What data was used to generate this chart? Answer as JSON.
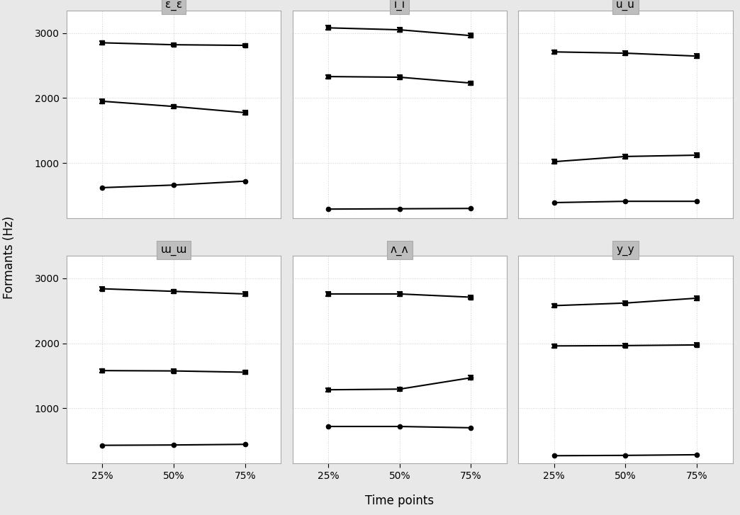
{
  "panels": [
    {
      "title": "ε_ε",
      "lines": [
        {
          "y": [
            2850,
            2820,
            2810
          ],
          "yerr": [
            28,
            22,
            22
          ],
          "marker": "s"
        },
        {
          "y": [
            1950,
            1870,
            1775
          ],
          "yerr": [
            28,
            28,
            28
          ],
          "marker": "s"
        },
        {
          "y": [
            620,
            660,
            720
          ],
          "yerr": [
            0,
            0,
            0
          ],
          "marker": "o"
        }
      ]
    },
    {
      "title": "i_i",
      "lines": [
        {
          "y": [
            3080,
            3050,
            2960
          ],
          "yerr": [
            32,
            28,
            32
          ],
          "marker": "s"
        },
        {
          "y": [
            2330,
            2320,
            2230
          ],
          "yerr": [
            28,
            28,
            28
          ],
          "marker": "s"
        },
        {
          "y": [
            290,
            295,
            300
          ],
          "yerr": [
            0,
            0,
            0
          ],
          "marker": "o"
        }
      ]
    },
    {
      "title": "u_u",
      "lines": [
        {
          "y": [
            2710,
            2690,
            2645
          ],
          "yerr": [
            28,
            28,
            32
          ],
          "marker": "s"
        },
        {
          "y": [
            1020,
            1100,
            1120
          ],
          "yerr": [
            32,
            32,
            32
          ],
          "marker": "s"
        },
        {
          "y": [
            390,
            410,
            410
          ],
          "yerr": [
            0,
            0,
            0
          ],
          "marker": "o"
        }
      ]
    },
    {
      "title": "ɯ_ɯ",
      "lines": [
        {
          "y": [
            2840,
            2800,
            2760
          ],
          "yerr": [
            28,
            28,
            32
          ],
          "marker": "s"
        },
        {
          "y": [
            1580,
            1575,
            1555
          ],
          "yerr": [
            28,
            28,
            28
          ],
          "marker": "s"
        },
        {
          "y": [
            430,
            435,
            445
          ],
          "yerr": [
            0,
            0,
            0
          ],
          "marker": "o"
        }
      ]
    },
    {
      "title": "ʌ_ʌ",
      "lines": [
        {
          "y": [
            2760,
            2760,
            2710
          ],
          "yerr": [
            28,
            28,
            28
          ],
          "marker": "s"
        },
        {
          "y": [
            1285,
            1295,
            1470
          ],
          "yerr": [
            28,
            28,
            32
          ],
          "marker": "o"
        },
        {
          "y": [
            720,
            720,
            700
          ],
          "yerr": [
            0,
            0,
            0
          ],
          "marker": "o"
        }
      ]
    },
    {
      "title": "y_y",
      "lines": [
        {
          "y": [
            2580,
            2620,
            2695
          ],
          "yerr": [
            28,
            28,
            32
          ],
          "marker": "s"
        },
        {
          "y": [
            1960,
            1965,
            1975
          ],
          "yerr": [
            28,
            28,
            28
          ],
          "marker": "s"
        },
        {
          "y": [
            270,
            275,
            285
          ],
          "yerr": [
            0,
            0,
            0
          ],
          "marker": "o"
        }
      ]
    }
  ],
  "xticklabels": [
    "25%",
    "50%",
    "75%"
  ],
  "ylabel": "Formants (Hz)",
  "xlabel": "Time points",
  "ylim": [
    150,
    3350
  ],
  "yticks": [
    1000,
    2000,
    3000
  ],
  "fig_bg": "#e8e8e8",
  "panel_bg": "#ffffff",
  "strip_bg": "#bebebe",
  "line_color": "#000000",
  "markersize": 4.5,
  "linewidth": 1.5,
  "capsize": 3,
  "elinewidth": 1.5,
  "grid_color": "#d0d0d0",
  "spine_color": "#aaaaaa"
}
